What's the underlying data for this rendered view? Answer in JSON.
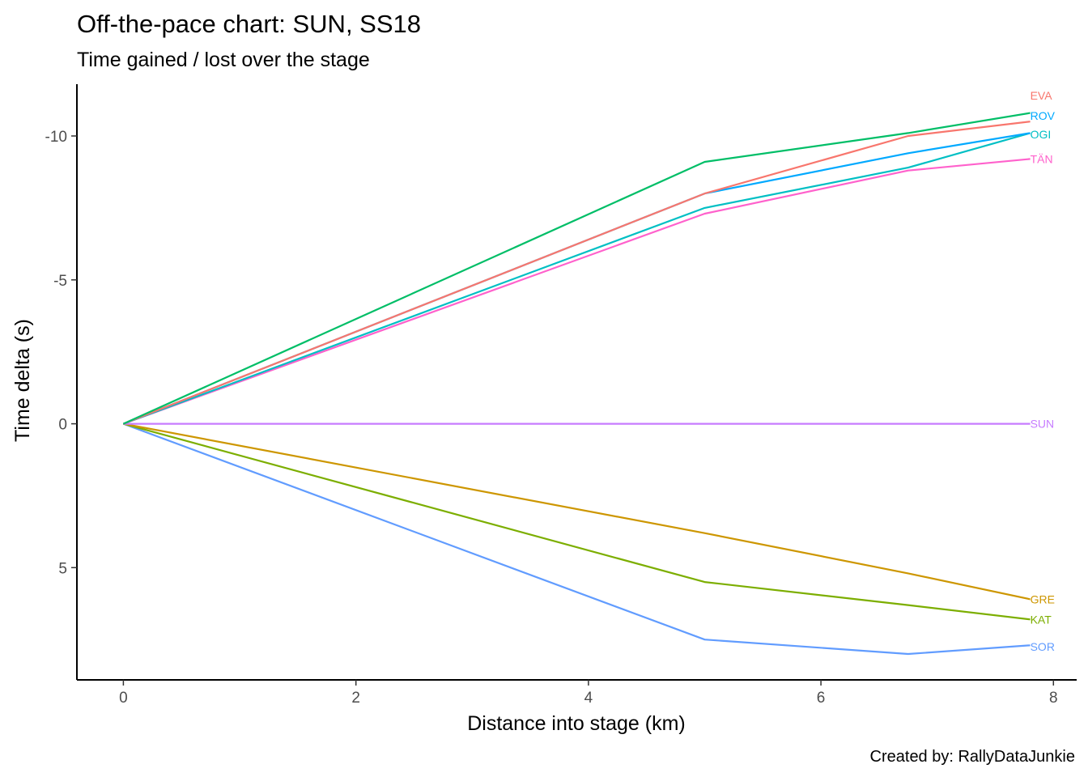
{
  "chart_data": {
    "type": "line",
    "title": "Off-the-pace chart: SUN, SS18",
    "subtitle": "Time gained / lost over the stage",
    "xlabel": "Distance into stage (km)",
    "ylabel": "Time delta (s)",
    "caption": "Created by: RallyDataJunkie",
    "xlim": [
      -0.4,
      8.2
    ],
    "ylim": [
      -11.8,
      8.9
    ],
    "y_reversed": true,
    "grid": false,
    "legend": "none (labels at line ends)",
    "x_ticks": [
      0,
      2,
      4,
      6,
      8
    ],
    "x_tick_labels": [
      "0",
      "2",
      "4",
      "6",
      "8"
    ],
    "y_ticks": [
      -10,
      -5,
      0,
      5
    ],
    "y_tick_labels": [
      "-10",
      "-5",
      "0",
      "5"
    ],
    "series": [
      {
        "name": "EVA",
        "color": "#F8766D",
        "x": [
          0,
          5.0,
          6.75,
          7.8
        ],
        "y": [
          0,
          -8.0,
          -10.0,
          -10.5
        ]
      },
      {
        "name": "GRE",
        "color": "#CD9600",
        "x": [
          0,
          5.0,
          6.75,
          7.8
        ],
        "y": [
          0,
          3.8,
          5.2,
          6.1
        ]
      },
      {
        "name": "KAT",
        "color": "#7CAE00",
        "x": [
          0,
          5.0,
          6.75,
          7.8
        ],
        "y": [
          0,
          5.5,
          6.3,
          6.8
        ]
      },
      {
        "name": "ROV",
        "color": "#00A9FF",
        "x": [
          0,
          5.0,
          6.75,
          7.8
        ],
        "y": [
          0,
          -8.0,
          -9.4,
          -10.1
        ]
      },
      {
        "name": "OGI",
        "color": "#00BE67",
        "x": [
          0,
          5.0,
          6.75,
          7.8
        ],
        "y": [
          0,
          -9.1,
          -10.1,
          -10.8
        ]
      },
      {
        "name": "TÄN",
        "color": "#00BFC4",
        "x": [
          0,
          5.0,
          6.75,
          7.8
        ],
        "y": [
          0,
          -7.5,
          -8.9,
          -10.1
        ]
      },
      {
        "name": "SOR",
        "color": "#619CFF",
        "x": [
          0,
          5.0,
          6.75,
          7.8
        ],
        "y": [
          0,
          7.5,
          8.0,
          7.7
        ]
      },
      {
        "name": "SUN",
        "color": "#C77CFF",
        "x": [
          0,
          5.0,
          6.75,
          7.8
        ],
        "y": [
          0,
          0,
          0,
          0
        ]
      },
      {
        "name": "",
        "color": "#FF61CC",
        "x": [
          0,
          5.0,
          6.75,
          7.8
        ],
        "y": [
          0,
          -7.3,
          -8.8,
          -9.2
        ]
      }
    ],
    "end_labels": [
      {
        "text": "EVA",
        "color": "#F8766D",
        "y": -11.4
      },
      {
        "text": "ROV",
        "color": "#00A9FF",
        "y": -10.7
      },
      {
        "text": "OGI",
        "color": "#00BFC4",
        "y": -10.05
      },
      {
        "text": "TÄN",
        "color": "#FF61CC",
        "y": -9.2
      },
      {
        "text": "SUN",
        "color": "#C77CFF",
        "y": 0
      },
      {
        "text": "GRE",
        "color": "#CD9600",
        "y": 6.1
      },
      {
        "text": "KAT",
        "color": "#7CAE00",
        "y": 6.8
      },
      {
        "text": "SOR",
        "color": "#619CFF",
        "y": 7.75
      }
    ]
  }
}
